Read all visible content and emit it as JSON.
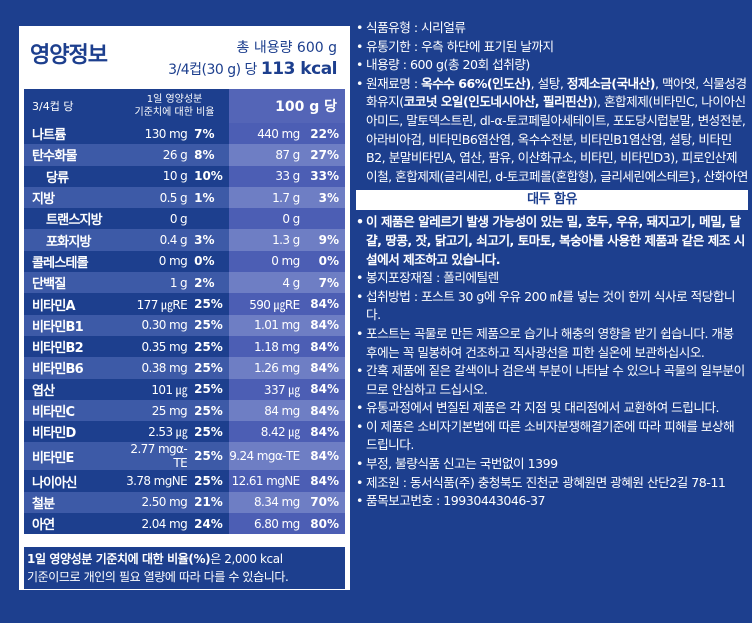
{
  "nutrition": {
    "title": "영양정보",
    "total_label": "총 내용량 600 g",
    "serving_label": "3/4컵(30 g) 당",
    "serving_kcal": "113 kcal",
    "header": {
      "col1": "3/4컵 당",
      "col2_line1": "1일 영양성분",
      "col2_line2": "기준치에 대한 비율",
      "col3": "100 g 당"
    },
    "rows": [
      {
        "name": "나트륨",
        "amt": "130 mg",
        "pct": "7%",
        "amt100": "440 mg",
        "pct100": "22%",
        "sub": false,
        "shade": "dark"
      },
      {
        "name": "탄수화물",
        "amt": "26 g",
        "pct": "8%",
        "amt100": "87 g",
        "pct100": "27%",
        "sub": false,
        "shade": "light"
      },
      {
        "name": "당류",
        "amt": "10 g",
        "pct": "10%",
        "amt100": "33 g",
        "pct100": "33%",
        "sub": true,
        "shade": "dark"
      },
      {
        "name": "지방",
        "amt": "0.5 g",
        "pct": "1%",
        "amt100": "1.7 g",
        "pct100": "3%",
        "sub": false,
        "shade": "light"
      },
      {
        "name": "트랜스지방",
        "amt": "0 g",
        "pct": "",
        "amt100": "0 g",
        "pct100": "",
        "sub": true,
        "shade": "dark"
      },
      {
        "name": "포화지방",
        "amt": "0.4 g",
        "pct": "3%",
        "amt100": "1.3 g",
        "pct100": "9%",
        "sub": true,
        "shade": "light"
      },
      {
        "name": "콜레스테롤",
        "amt": "0 mg",
        "pct": "0%",
        "amt100": "0 mg",
        "pct100": "0%",
        "sub": false,
        "shade": "dark"
      },
      {
        "name": "단백질",
        "amt": "1 g",
        "pct": "2%",
        "amt100": "4 g",
        "pct100": "7%",
        "sub": false,
        "shade": "light"
      },
      {
        "name": "비타민A",
        "amt": "177 ㎍RE",
        "pct": "25%",
        "amt100": "590 ㎍RE",
        "pct100": "84%",
        "sub": false,
        "shade": "dark"
      },
      {
        "name": "비타민B1",
        "amt": "0.30 mg",
        "pct": "25%",
        "amt100": "1.01 mg",
        "pct100": "84%",
        "sub": false,
        "shade": "light"
      },
      {
        "name": "비타민B2",
        "amt": "0.35 mg",
        "pct": "25%",
        "amt100": "1.18 mg",
        "pct100": "84%",
        "sub": false,
        "shade": "dark"
      },
      {
        "name": "비타민B6",
        "amt": "0.38 mg",
        "pct": "25%",
        "amt100": "1.26 mg",
        "pct100": "84%",
        "sub": false,
        "shade": "light"
      },
      {
        "name": "엽산",
        "amt": "101 ㎍",
        "pct": "25%",
        "amt100": "337 ㎍",
        "pct100": "84%",
        "sub": false,
        "shade": "dark"
      },
      {
        "name": "비타민C",
        "amt": "25 mg",
        "pct": "25%",
        "amt100": "84 mg",
        "pct100": "84%",
        "sub": false,
        "shade": "light"
      },
      {
        "name": "비타민D",
        "amt": "2.53 ㎍",
        "pct": "25%",
        "amt100": "8.42 ㎍",
        "pct100": "84%",
        "sub": false,
        "shade": "dark"
      },
      {
        "name": "비타민E",
        "amt": "2.77 mgα-TE",
        "pct": "25%",
        "amt100": "9.24 mgα-TE",
        "pct100": "84%",
        "sub": false,
        "shade": "light"
      },
      {
        "name": "나이아신",
        "amt": "3.78 mgNE",
        "pct": "25%",
        "amt100": "12.61 mgNE",
        "pct100": "84%",
        "sub": false,
        "shade": "dark"
      },
      {
        "name": "철분",
        "amt": "2.50 mg",
        "pct": "21%",
        "amt100": "8.34 mg",
        "pct100": "70%",
        "sub": false,
        "shade": "light"
      },
      {
        "name": "아연",
        "amt": "2.04 mg",
        "pct": "24%",
        "amt100": "6.80 mg",
        "pct100": "80%",
        "sub": false,
        "shade": "dark"
      }
    ],
    "footnote_bold": "1일 영양성분 기준치에 대한 비율(%)",
    "footnote_rest1": "은 2,000 kcal",
    "footnote_line2": "기준이므로 개인의 필요 열량에 따라 다를 수 있습니다."
  },
  "info": {
    "type": "식품유형 : 시리얼류",
    "expiry": "유통기한 : 우측 하단에 표기된 날까지",
    "volume": "내용량 : 600 g(총 20회 섭취량)",
    "ingredients_prefix": "원재료명 : ",
    "ingredients_b1": "옥수수 66%(인도산)",
    "ingredients_t1": ", 설탕, ",
    "ingredients_b2": "정제소금(국내산)",
    "ingredients_t2": ", 맥아엿, 식물성경화유지(",
    "ingredients_b3": "코코넛 오일(인도네시아산, 필리핀산)",
    "ingredients_t3": "), 혼합제제(비타민C, 나이아신아미드, 말토덱스트린, dl-α-토코페릴아세테이트, 포도당시럽분말, 변성전분, 아라비아검, 비타민B6염산염, 옥수수전분, 비타민B1염산염, 설탕, 비타민B2, 분말비타민A, 엽산, 팜유, 이산화규소, 비타민, 비타민D3), 피로인산제이철, 혼합제제(글리세린, d-토코페롤(혼합형), 글리세린에스테르}, 산화아연",
    "allergy_banner": "대두 함유",
    "allergy_text": "이 제품은 알레르기 발생 가능성이 있는 밀, 호두, 우유, 돼지고기, 메밀, 달걀, 땅콩, 잣, 닭고기, 쇠고기, 토마토, 복숭아를 사용한 제품과 같은 제조 시설에서 제조하고 있습니다.",
    "packaging": "봉지포장재질 : 폴리에틸렌",
    "method": "섭취방법 : 포스트 30 g에 우유 200 ㎖를 넣는 것이 한끼 식사로 적당합니다.",
    "storage": "포스트는 곡물로 만든 제품으로 습기나 해충의 영향을 받기 쉽습니다. 개봉 후에는 꼭 밀봉하여 건조하고 직사광선을 피한 실온에 보관하십시오.",
    "spots": "간혹 제품에 짙은 갈색이나 검은색 부분이 나타날 수 있으나 곡물의 일부분이므로 안심하고 드십시오.",
    "exchange": "유통과정에서 변질된 제품은 각 지점 및 대리점에서 교환하여 드립니다.",
    "compensation": "이 제품은 소비자기본법에 따른 소비자분쟁해결기준에 따라 피해를 보상해 드립니다.",
    "report": "부정, 불량식품 신고는 국번없이 1399",
    "maker": "제조원 : 동서식품(주) 충청북도 진천군 광혜원면 광혜원 산단2길 78-11",
    "report_no": "품목보고번호 : 19930443046-37"
  }
}
